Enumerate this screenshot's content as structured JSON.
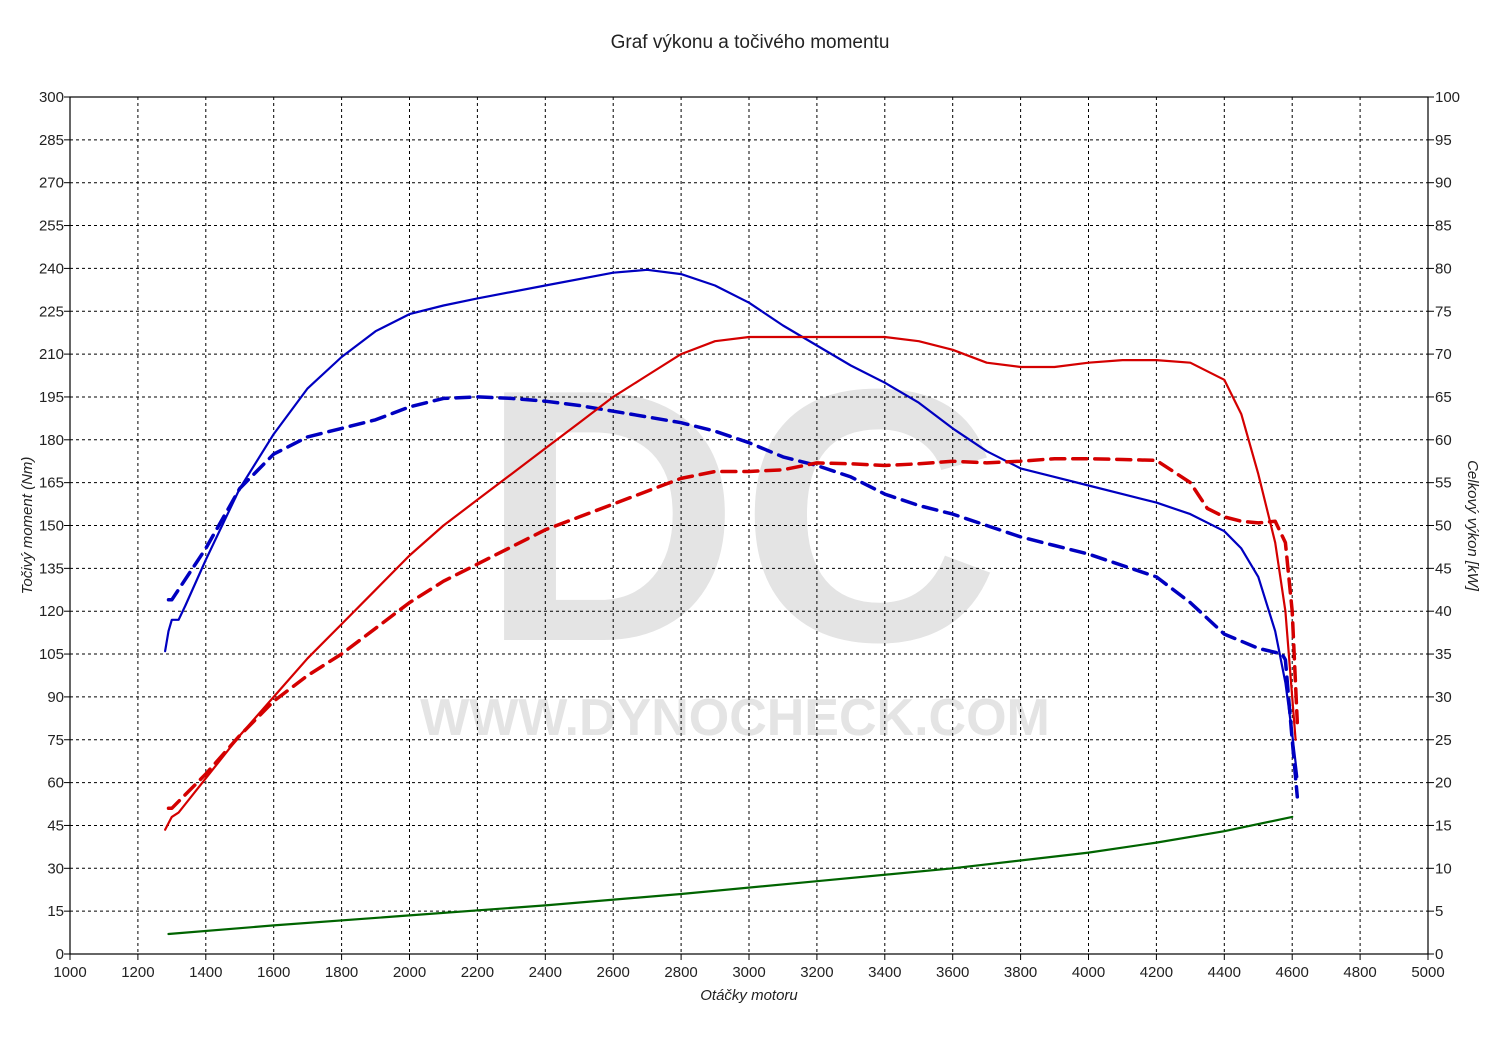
{
  "chart_data": {
    "type": "line",
    "title": "Graf výkonu a točivého momentu",
    "xlabel": "Otáčky motoru",
    "ylabel_left": "Točivý moment (Nm)",
    "ylabel_right": "Celkový výkon [kW]",
    "watermark": {
      "logo": "DC",
      "url": "WWW.DYNOCHECK.COM"
    },
    "xlim": [
      1000,
      5000
    ],
    "ylim_left": [
      0,
      300
    ],
    "ylim_right": [
      0,
      100
    ],
    "x_ticks": [
      1000,
      1200,
      1400,
      1600,
      1800,
      2000,
      2200,
      2400,
      2600,
      2800,
      3000,
      3200,
      3400,
      3600,
      3800,
      4000,
      4200,
      4400,
      4600,
      4800,
      5000
    ],
    "y_ticks_left": [
      0,
      15,
      30,
      45,
      60,
      75,
      90,
      105,
      120,
      135,
      150,
      165,
      180,
      195,
      210,
      225,
      240,
      255,
      270,
      285,
      300
    ],
    "y_ticks_right": [
      0,
      5,
      10,
      15,
      20,
      25,
      30,
      35,
      40,
      45,
      50,
      55,
      60,
      65,
      70,
      75,
      80,
      85,
      90,
      95,
      100
    ],
    "grid": true,
    "series": [
      {
        "axis": "left",
        "color": "#0000c0",
        "dash": "solid",
        "points": [
          [
            1280,
            106
          ],
          [
            1290,
            113
          ],
          [
            1300,
            117
          ],
          [
            1320,
            117
          ],
          [
            1340,
            122
          ],
          [
            1400,
            138
          ],
          [
            1500,
            163
          ],
          [
            1600,
            182
          ],
          [
            1700,
            198
          ],
          [
            1800,
            209
          ],
          [
            1900,
            218
          ],
          [
            2000,
            224
          ],
          [
            2100,
            227
          ],
          [
            2200,
            229.5
          ],
          [
            2400,
            234
          ],
          [
            2600,
            238.5
          ],
          [
            2700,
            239.5
          ],
          [
            2800,
            238
          ],
          [
            2900,
            234
          ],
          [
            3000,
            228
          ],
          [
            3100,
            220
          ],
          [
            3200,
            213
          ],
          [
            3300,
            206
          ],
          [
            3400,
            200
          ],
          [
            3500,
            193
          ],
          [
            3600,
            184
          ],
          [
            3700,
            176
          ],
          [
            3800,
            170
          ],
          [
            3900,
            167
          ],
          [
            4000,
            164
          ],
          [
            4100,
            161
          ],
          [
            4200,
            158
          ],
          [
            4300,
            154
          ],
          [
            4400,
            148
          ],
          [
            4450,
            142
          ],
          [
            4500,
            132
          ],
          [
            4550,
            113
          ],
          [
            4580,
            95
          ],
          [
            4600,
            77
          ],
          [
            4615,
            62
          ]
        ]
      },
      {
        "axis": "left",
        "color": "#0000c0",
        "dash": "dashed",
        "points": [
          [
            1290,
            124
          ],
          [
            1300,
            124
          ],
          [
            1400,
            142
          ],
          [
            1500,
            163
          ],
          [
            1600,
            175
          ],
          [
            1700,
            181
          ],
          [
            1800,
            184
          ],
          [
            1900,
            187
          ],
          [
            2000,
            191.5
          ],
          [
            2100,
            194.5
          ],
          [
            2200,
            195
          ],
          [
            2300,
            194.5
          ],
          [
            2400,
            193.5
          ],
          [
            2500,
            192
          ],
          [
            2600,
            190
          ],
          [
            2700,
            188
          ],
          [
            2800,
            186
          ],
          [
            2900,
            183
          ],
          [
            3000,
            179
          ],
          [
            3100,
            174
          ],
          [
            3200,
            171
          ],
          [
            3300,
            167
          ],
          [
            3400,
            161
          ],
          [
            3500,
            157
          ],
          [
            3600,
            154
          ],
          [
            3700,
            150
          ],
          [
            3800,
            146
          ],
          [
            3900,
            143
          ],
          [
            4000,
            140
          ],
          [
            4100,
            136
          ],
          [
            4200,
            132
          ],
          [
            4300,
            123
          ],
          [
            4400,
            112
          ],
          [
            4500,
            107
          ],
          [
            4570,
            105
          ],
          [
            4580,
            103
          ],
          [
            4600,
            75
          ],
          [
            4615,
            55
          ]
        ]
      },
      {
        "axis": "right",
        "color": "#d40000",
        "dash": "solid",
        "points": [
          [
            1280,
            14.5
          ],
          [
            1300,
            16
          ],
          [
            1320,
            16.5
          ],
          [
            1340,
            17.5
          ],
          [
            1400,
            20.5
          ],
          [
            1500,
            25.5
          ],
          [
            1600,
            30
          ],
          [
            1700,
            34.5
          ],
          [
            1800,
            38.5
          ],
          [
            1900,
            42.5
          ],
          [
            2000,
            46.5
          ],
          [
            2100,
            50
          ],
          [
            2200,
            53
          ],
          [
            2300,
            56
          ],
          [
            2400,
            59
          ],
          [
            2500,
            62
          ],
          [
            2600,
            65
          ],
          [
            2700,
            67.5
          ],
          [
            2800,
            70
          ],
          [
            2900,
            71.5
          ],
          [
            3000,
            72
          ],
          [
            3100,
            72
          ],
          [
            3200,
            72
          ],
          [
            3300,
            72
          ],
          [
            3400,
            72
          ],
          [
            3500,
            71.5
          ],
          [
            3600,
            70.5
          ],
          [
            3700,
            69
          ],
          [
            3800,
            68.5
          ],
          [
            3900,
            68.5
          ],
          [
            4000,
            69
          ],
          [
            4100,
            69.3
          ],
          [
            4200,
            69.3
          ],
          [
            4300,
            69
          ],
          [
            4400,
            67
          ],
          [
            4450,
            63
          ],
          [
            4500,
            56
          ],
          [
            4550,
            48
          ],
          [
            4580,
            40
          ],
          [
            4600,
            30
          ],
          [
            4610,
            25
          ]
        ]
      },
      {
        "axis": "right",
        "color": "#d40000",
        "dash": "dashed",
        "points": [
          [
            1290,
            17
          ],
          [
            1300,
            17
          ],
          [
            1400,
            21
          ],
          [
            1500,
            25.5
          ],
          [
            1600,
            29.5
          ],
          [
            1700,
            32.5
          ],
          [
            1800,
            35
          ],
          [
            1900,
            38
          ],
          [
            2000,
            41
          ],
          [
            2100,
            43.5
          ],
          [
            2200,
            45.5
          ],
          [
            2300,
            47.5
          ],
          [
            2400,
            49.5
          ],
          [
            2500,
            51
          ],
          [
            2600,
            52.5
          ],
          [
            2700,
            54
          ],
          [
            2800,
            55.5
          ],
          [
            2900,
            56.3
          ],
          [
            3000,
            56.3
          ],
          [
            3100,
            56.5
          ],
          [
            3200,
            57.3
          ],
          [
            3300,
            57.2
          ],
          [
            3400,
            57
          ],
          [
            3500,
            57.2
          ],
          [
            3600,
            57.5
          ],
          [
            3700,
            57.3
          ],
          [
            3800,
            57.5
          ],
          [
            3900,
            57.8
          ],
          [
            4000,
            57.8
          ],
          [
            4100,
            57.7
          ],
          [
            4200,
            57.6
          ],
          [
            4300,
            55
          ],
          [
            4350,
            52
          ],
          [
            4400,
            51
          ],
          [
            4450,
            50.5
          ],
          [
            4500,
            50.3
          ],
          [
            4550,
            50.5
          ],
          [
            4580,
            48
          ],
          [
            4600,
            40
          ],
          [
            4615,
            27
          ]
        ]
      },
      {
        "axis": "left",
        "color": "#006400",
        "dash": "solid",
        "points": [
          [
            1290,
            7
          ],
          [
            1600,
            10
          ],
          [
            2000,
            13.5
          ],
          [
            2400,
            17
          ],
          [
            2800,
            21
          ],
          [
            3200,
            25.5
          ],
          [
            3600,
            30
          ],
          [
            4000,
            35.5
          ],
          [
            4200,
            39
          ],
          [
            4400,
            43
          ],
          [
            4600,
            48
          ]
        ]
      }
    ]
  }
}
